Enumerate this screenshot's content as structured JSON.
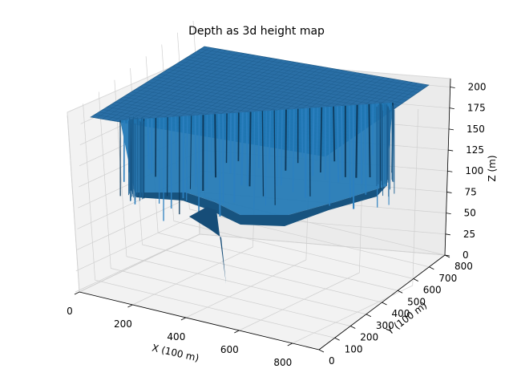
{
  "chart_data": {
    "type": "surface",
    "title": "Depth as 3d height map",
    "xlabel": "X (100 m)",
    "ylabel": "Y (100 m)",
    "zlabel": "Z (m)",
    "x_ticks": [
      0,
      200,
      400,
      600,
      800
    ],
    "y_ticks": [
      0,
      100,
      200,
      300,
      400,
      500,
      600,
      700,
      800
    ],
    "z_ticks": [
      0,
      25,
      50,
      75,
      100,
      125,
      150,
      175,
      200
    ],
    "xlim": [
      0,
      900
    ],
    "ylim": [
      0,
      800
    ],
    "zlim": [
      0,
      210
    ],
    "grid": true,
    "surface_color": "#1f77b4",
    "plateau_z": 200,
    "basin_floor_z": 75,
    "deepest_point": {
      "x": 350,
      "y": 280,
      "z": 0
    }
  }
}
